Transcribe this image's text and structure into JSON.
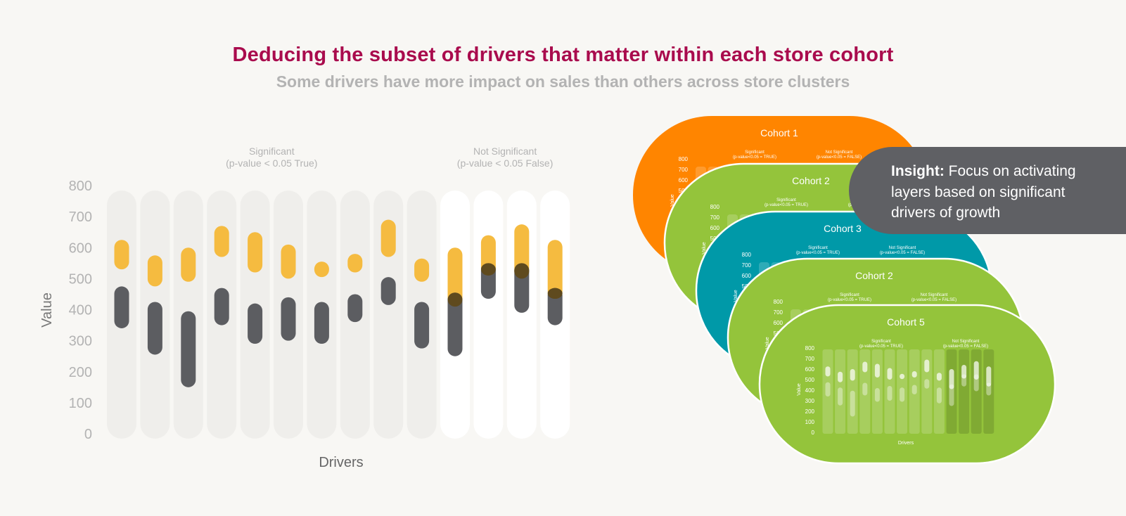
{
  "header": {
    "title": "Deducing the subset of drivers that matter within each store cohort",
    "subtitle": "Some drivers have more impact on sales than others across store clusters"
  },
  "colors": {
    "title": "#a90b4d",
    "yellow": "#f5bb40",
    "dark": "#5c5d61",
    "overlap": "#5f4a1e",
    "significant_track": "#efeeeb",
    "not_significant_track": "#ffffff",
    "axis_text": "#b3b3b3",
    "cohort_orange": "#ff8500",
    "cohort_green": "#94c43b",
    "cohort_teal": "#0099a8"
  },
  "chart_data": {
    "type": "range-bar",
    "ylabel": "Value",
    "xlabel": "Drivers",
    "ylim": [
      0,
      800
    ],
    "yticks": [
      0,
      100,
      200,
      300,
      400,
      500,
      600,
      700,
      800
    ],
    "groups": [
      {
        "label_line1": "Significant",
        "label_line2": "(p-value < 0.05 True)",
        "count": 10
      },
      {
        "label_line1": "Not Significant",
        "label_line2": "(p-value < 0.05 False)",
        "count": 4
      }
    ],
    "drivers": [
      {
        "yellow": [
          530,
          625
        ],
        "dark": [
          340,
          475
        ]
      },
      {
        "yellow": [
          475,
          575
        ],
        "dark": [
          255,
          425
        ]
      },
      {
        "yellow": [
          490,
          600
        ],
        "dark": [
          150,
          395
        ]
      },
      {
        "yellow": [
          570,
          670
        ],
        "dark": [
          350,
          470
        ]
      },
      {
        "yellow": [
          520,
          650
        ],
        "dark": [
          290,
          420
        ]
      },
      {
        "yellow": [
          500,
          610
        ],
        "dark": [
          300,
          440
        ]
      },
      {
        "yellow": [
          505,
          555
        ],
        "dark": [
          290,
          425
        ]
      },
      {
        "yellow": [
          520,
          580
        ],
        "dark": [
          360,
          450
        ]
      },
      {
        "yellow": [
          570,
          690
        ],
        "dark": [
          415,
          505
        ]
      },
      {
        "yellow": [
          490,
          565
        ],
        "dark": [
          275,
          425
        ]
      },
      {
        "yellow": [
          410,
          600
        ],
        "dark": [
          250,
          455
        ]
      },
      {
        "yellow": [
          510,
          640
        ],
        "dark": [
          435,
          550
        ]
      },
      {
        "yellow": [
          500,
          675
        ],
        "dark": [
          390,
          550
        ]
      },
      {
        "yellow": [
          435,
          625
        ],
        "dark": [
          350,
          470
        ]
      }
    ]
  },
  "cohorts": [
    {
      "name": "Cohort 1",
      "color": "#ff8500"
    },
    {
      "name": "Cohort 2",
      "color": "#94c43b"
    },
    {
      "name": "Cohort 3",
      "color": "#0099a8"
    },
    {
      "name": "Cohort 2",
      "color": "#94c43b"
    },
    {
      "name": "Cohort 5",
      "color": "#94c43b"
    }
  ],
  "cohort_mini": {
    "sig_line1": "Significant",
    "sig_line2": "(p-value<0.05 = TRUE)",
    "notsig_line1": "Not Significant",
    "notsig_line2": "(p-value<0.05 = FALSE)",
    "ylabel": "Value",
    "xlabel": "Drivers"
  },
  "insight": {
    "bold": "Insight:",
    "text": " Focus on activating layers based on significant drivers of growth"
  }
}
